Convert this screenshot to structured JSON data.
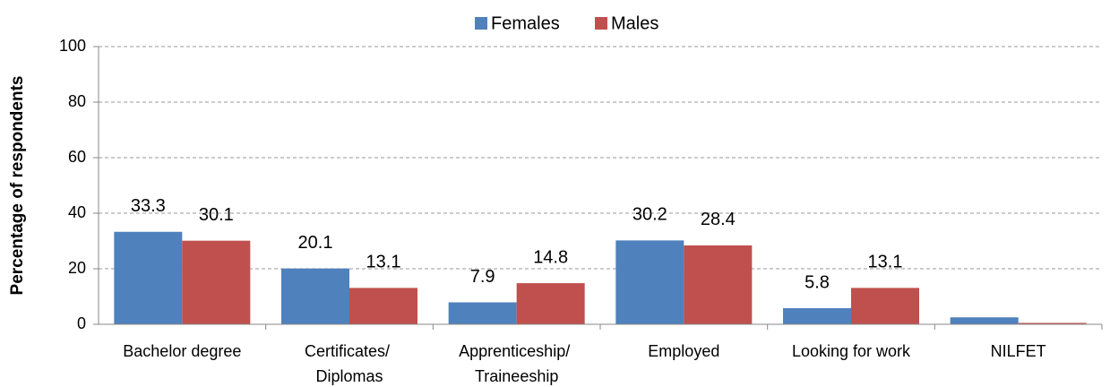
{
  "chart_data": {
    "type": "bar",
    "y_label": "Percentage of respondents",
    "categories": [
      "Bachelor degree",
      "Certificates/ Diplomas",
      "Apprenticeship/ Traineeship",
      "Employed",
      "Looking for work",
      "NILFET"
    ],
    "series": [
      {
        "name": "Females",
        "color": "#4f81bd",
        "values": [
          33.3,
          20.1,
          7.9,
          30.2,
          5.8,
          2.5
        ],
        "value_labels": [
          "33.3",
          "20.1",
          "7.9",
          "30.2",
          "5.8",
          null
        ]
      },
      {
        "name": "Males",
        "color": "#c0504d",
        "values": [
          30.1,
          13.1,
          14.8,
          28.4,
          13.1,
          0.5
        ],
        "value_labels": [
          "30.1",
          "13.1",
          "14.8",
          "28.4",
          "13.1",
          null
        ]
      }
    ],
    "ylim": [
      0,
      100
    ],
    "yticks": [
      0,
      20,
      40,
      60,
      80,
      100
    ],
    "grid": true,
    "legend": "top"
  }
}
